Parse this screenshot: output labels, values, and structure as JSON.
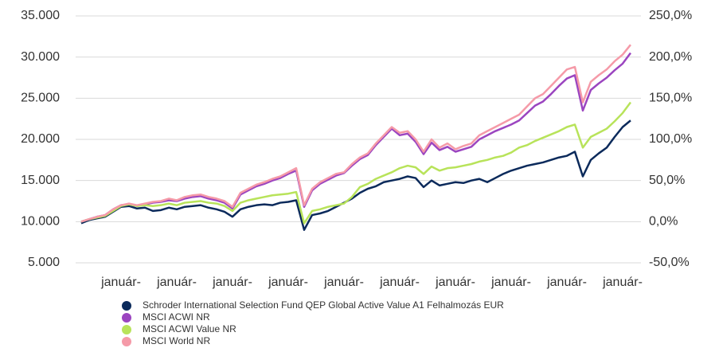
{
  "chart_data": {
    "type": "line",
    "categories": [
      null,
      null,
      null,
      null,
      null,
      "január-",
      null,
      null,
      null,
      null,
      null,
      null,
      "január-",
      null,
      null,
      null,
      null,
      null,
      null,
      "január-",
      null,
      null,
      null,
      null,
      null,
      null,
      "január-",
      null,
      null,
      null,
      null,
      null,
      null,
      "január-",
      null,
      null,
      null,
      null,
      null,
      null,
      "január-",
      null,
      null,
      null,
      null,
      null,
      null,
      "január-",
      null,
      null,
      null,
      null,
      null,
      null,
      "január-",
      null,
      null,
      null,
      null,
      null,
      null,
      "január-",
      null,
      null,
      null,
      null,
      null,
      null,
      "január-",
      null
    ],
    "series": [
      {
        "name": "Schroder International Selection Fund QEP Global Active Value A1 Felhalmozás EUR",
        "color": "#0b2a5b",
        "values": [
          9800,
          10200,
          10400,
          10600,
          11200,
          11800,
          11900,
          11600,
          11700,
          11300,
          11400,
          11700,
          11500,
          11800,
          11900,
          12000,
          11700,
          11500,
          11200,
          10600,
          11500,
          11800,
          12000,
          12100,
          12000,
          12300,
          12400,
          12600,
          9000,
          10800,
          11000,
          11300,
          11800,
          12300,
          12800,
          13500,
          14000,
          14300,
          14800,
          15000,
          15200,
          15500,
          15300,
          14200,
          15000,
          14400,
          14600,
          14800,
          14700,
          15000,
          15200,
          14800,
          15300,
          15800,
          16200,
          16500,
          16800,
          17000,
          17200,
          17500,
          17800,
          18000,
          18500,
          15500,
          17500,
          18300,
          19000,
          20300,
          21500,
          22300
        ]
      },
      {
        "name": "MSCI ACWI NR",
        "color": "#9b45c0",
        "values": [
          10000,
          10300,
          10600,
          10800,
          11500,
          12000,
          12100,
          11900,
          12100,
          12300,
          12400,
          12600,
          12500,
          12800,
          13000,
          13100,
          12800,
          12600,
          12300,
          11600,
          13300,
          13800,
          14300,
          14600,
          15000,
          15300,
          15800,
          16200,
          11800,
          13800,
          14600,
          15100,
          15600,
          15900,
          16800,
          17600,
          18100,
          19300,
          20300,
          21300,
          20500,
          20700,
          19700,
          18200,
          19600,
          18700,
          19100,
          18500,
          18800,
          19100,
          20000,
          20500,
          21000,
          21400,
          21800,
          22300,
          23200,
          24100,
          24600,
          25500,
          26500,
          27400,
          27800,
          23500,
          26000,
          26800,
          27500,
          28400,
          29200,
          30500
        ]
      },
      {
        "name": "MSCI ACWI Value NR",
        "color": "#b8e35a",
        "values": [
          10000,
          10300,
          10500,
          10700,
          11300,
          11900,
          12100,
          11900,
          12000,
          11900,
          12000,
          12200,
          12000,
          12300,
          12400,
          12500,
          12300,
          12200,
          11900,
          11300,
          12300,
          12600,
          12800,
          13000,
          13200,
          13300,
          13400,
          13600,
          9800,
          11300,
          11500,
          11800,
          12000,
          12200,
          13000,
          14200,
          14600,
          15200,
          15600,
          16000,
          16500,
          16800,
          16600,
          15800,
          16700,
          16200,
          16500,
          16600,
          16800,
          17000,
          17300,
          17500,
          17800,
          18000,
          18400,
          19000,
          19300,
          19800,
          20200,
          20600,
          21000,
          21500,
          21800,
          19000,
          20300,
          20800,
          21300,
          22200,
          23200,
          24500
        ]
      },
      {
        "name": "MSCI World NR",
        "color": "#f59aa8",
        "values": [
          10000,
          10300,
          10600,
          10800,
          11500,
          12000,
          12200,
          12000,
          12200,
          12400,
          12500,
          12800,
          12600,
          13000,
          13200,
          13300,
          13000,
          12800,
          12500,
          11800,
          13500,
          14000,
          14500,
          14800,
          15200,
          15500,
          16000,
          16500,
          12000,
          14000,
          14800,
          15300,
          15800,
          16000,
          17000,
          17800,
          18300,
          19500,
          20500,
          21500,
          20800,
          21000,
          20000,
          18500,
          20000,
          19000,
          19500,
          18800,
          19200,
          19500,
          20500,
          21000,
          21500,
          22000,
          22500,
          23000,
          24000,
          25000,
          25500,
          26500,
          27500,
          28500,
          28800,
          24500,
          27000,
          27800,
          28500,
          29500,
          30300,
          31500
        ]
      }
    ],
    "ylim": [
      5000,
      35000
    ],
    "yticks": [
      {
        "value": 5000,
        "label": "5.000"
      },
      {
        "value": 10000,
        "label": "10.000"
      },
      {
        "value": 15000,
        "label": "15.000"
      },
      {
        "value": 20000,
        "label": "20.000"
      },
      {
        "value": 25000,
        "label": "25.000"
      },
      {
        "value": 30000,
        "label": "30.000"
      },
      {
        "value": 35000,
        "label": "35.000"
      }
    ],
    "y2lim": [
      -50,
      250
    ],
    "y2ticks": [
      {
        "value": -50,
        "label": "-50,0%"
      },
      {
        "value": 0,
        "label": "0,0%"
      },
      {
        "value": 50,
        "label": "50,0%"
      },
      {
        "value": 100,
        "label": "100,0%"
      },
      {
        "value": 150,
        "label": "150,0%"
      },
      {
        "value": 200,
        "label": "200,0%"
      },
      {
        "value": 250,
        "label": "250,0%"
      }
    ],
    "grid": true,
    "legend": "bottom"
  }
}
